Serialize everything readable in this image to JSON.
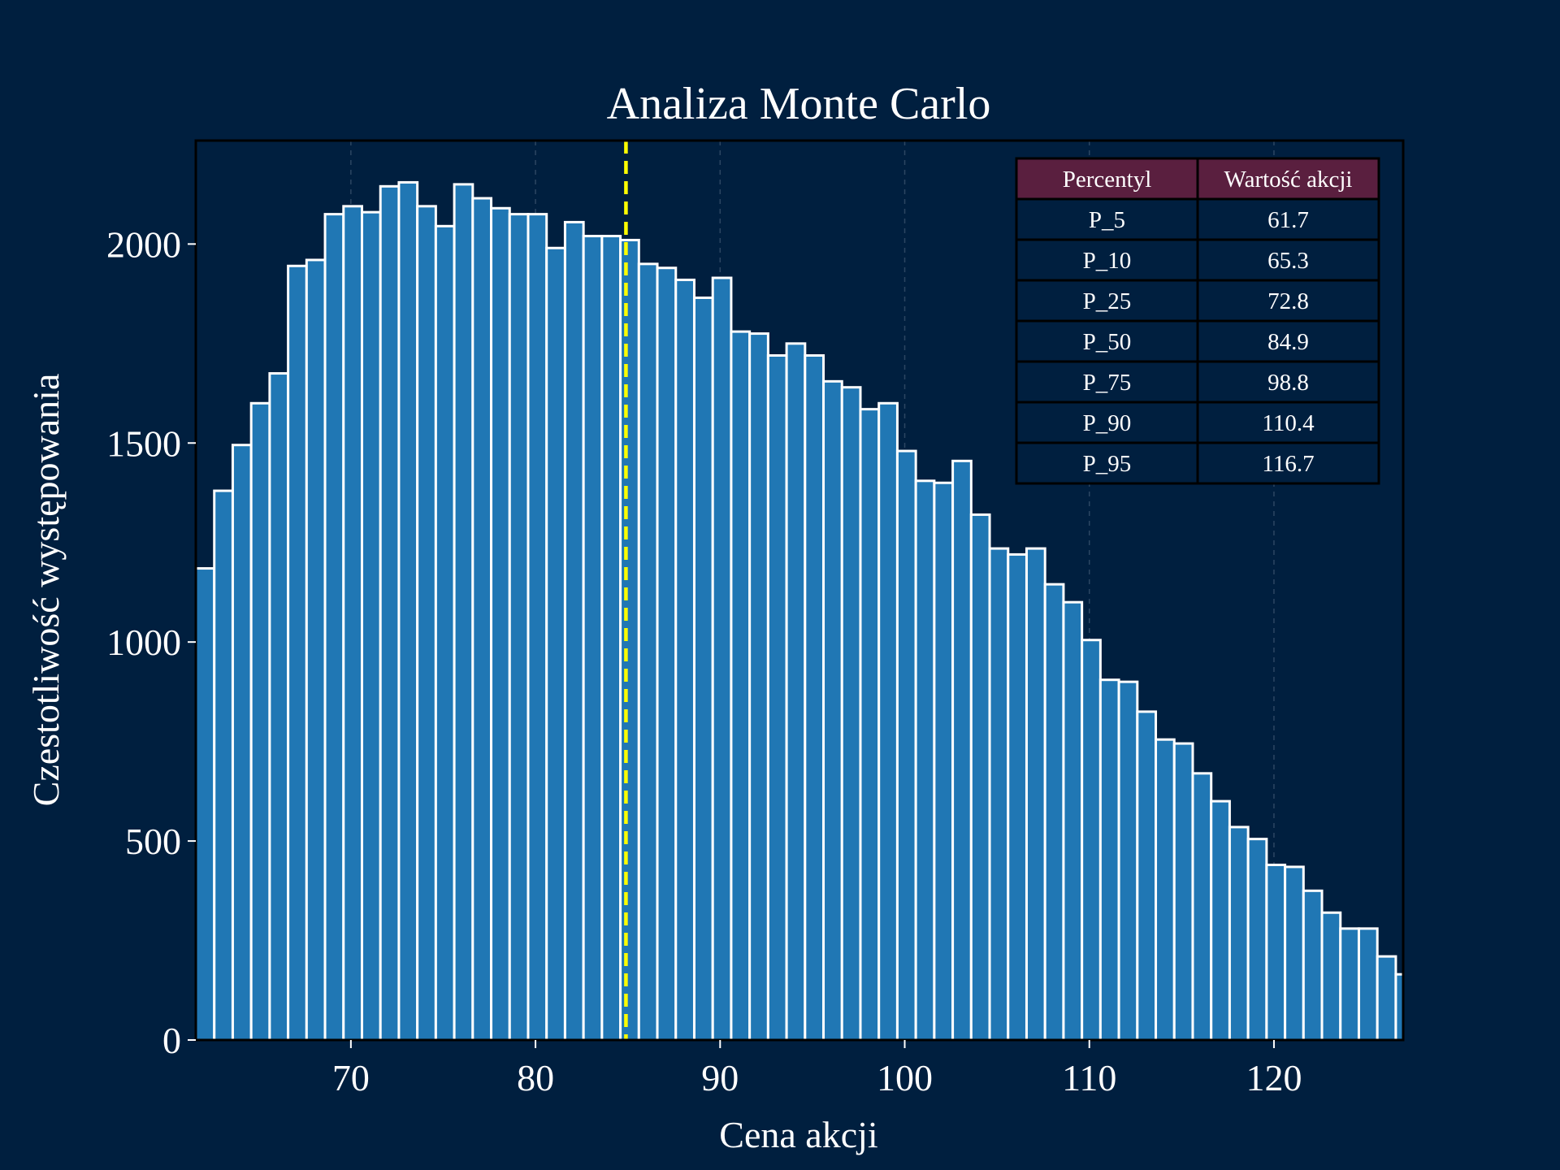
{
  "chart_data": {
    "type": "bar",
    "title": "Analiza Monte Carlo",
    "xlabel": "Cena akcji",
    "ylabel": "Czestotliwość występowania",
    "xlim": [
      61.6,
      127.0
    ],
    "ylim": [
      0,
      2260
    ],
    "xticks": [
      70,
      80,
      90,
      100,
      110,
      120
    ],
    "yticks": [
      0,
      500,
      1000,
      1500,
      2000
    ],
    "grid": "vertical dashed",
    "bin_width": 1.0,
    "x_start": 61.6,
    "values": [
      1185,
      1380,
      1495,
      1600,
      1675,
      1945,
      1960,
      2075,
      2095,
      2080,
      2145,
      2155,
      2095,
      2045,
      2150,
      2115,
      2090,
      2075,
      2075,
      1990,
      2055,
      2020,
      2020,
      2010,
      1950,
      1940,
      1910,
      1865,
      1915,
      1780,
      1775,
      1720,
      1750,
      1720,
      1655,
      1640,
      1585,
      1600,
      1480,
      1405,
      1400,
      1455,
      1320,
      1235,
      1220,
      1235,
      1145,
      1100,
      1005,
      905,
      900,
      825,
      755,
      745,
      670,
      600,
      535,
      505,
      440,
      435,
      375,
      320,
      280,
      280,
      210,
      165
    ],
    "bar_color": "#2077b4",
    "median_line": {
      "x": 84.9,
      "color": "#ffff00",
      "style": "dashed"
    },
    "table": {
      "placement": "top-right",
      "header_color": "#5a1f3f",
      "columns": [
        "Percentyl",
        "Wartość akcji"
      ],
      "rows": [
        [
          "P_5",
          "61.7"
        ],
        [
          "P_10",
          "65.3"
        ],
        [
          "P_25",
          "72.8"
        ],
        [
          "P_50",
          "84.9"
        ],
        [
          "P_75",
          "98.8"
        ],
        [
          "P_90",
          "110.4"
        ],
        [
          "P_95",
          "116.7"
        ]
      ]
    }
  }
}
